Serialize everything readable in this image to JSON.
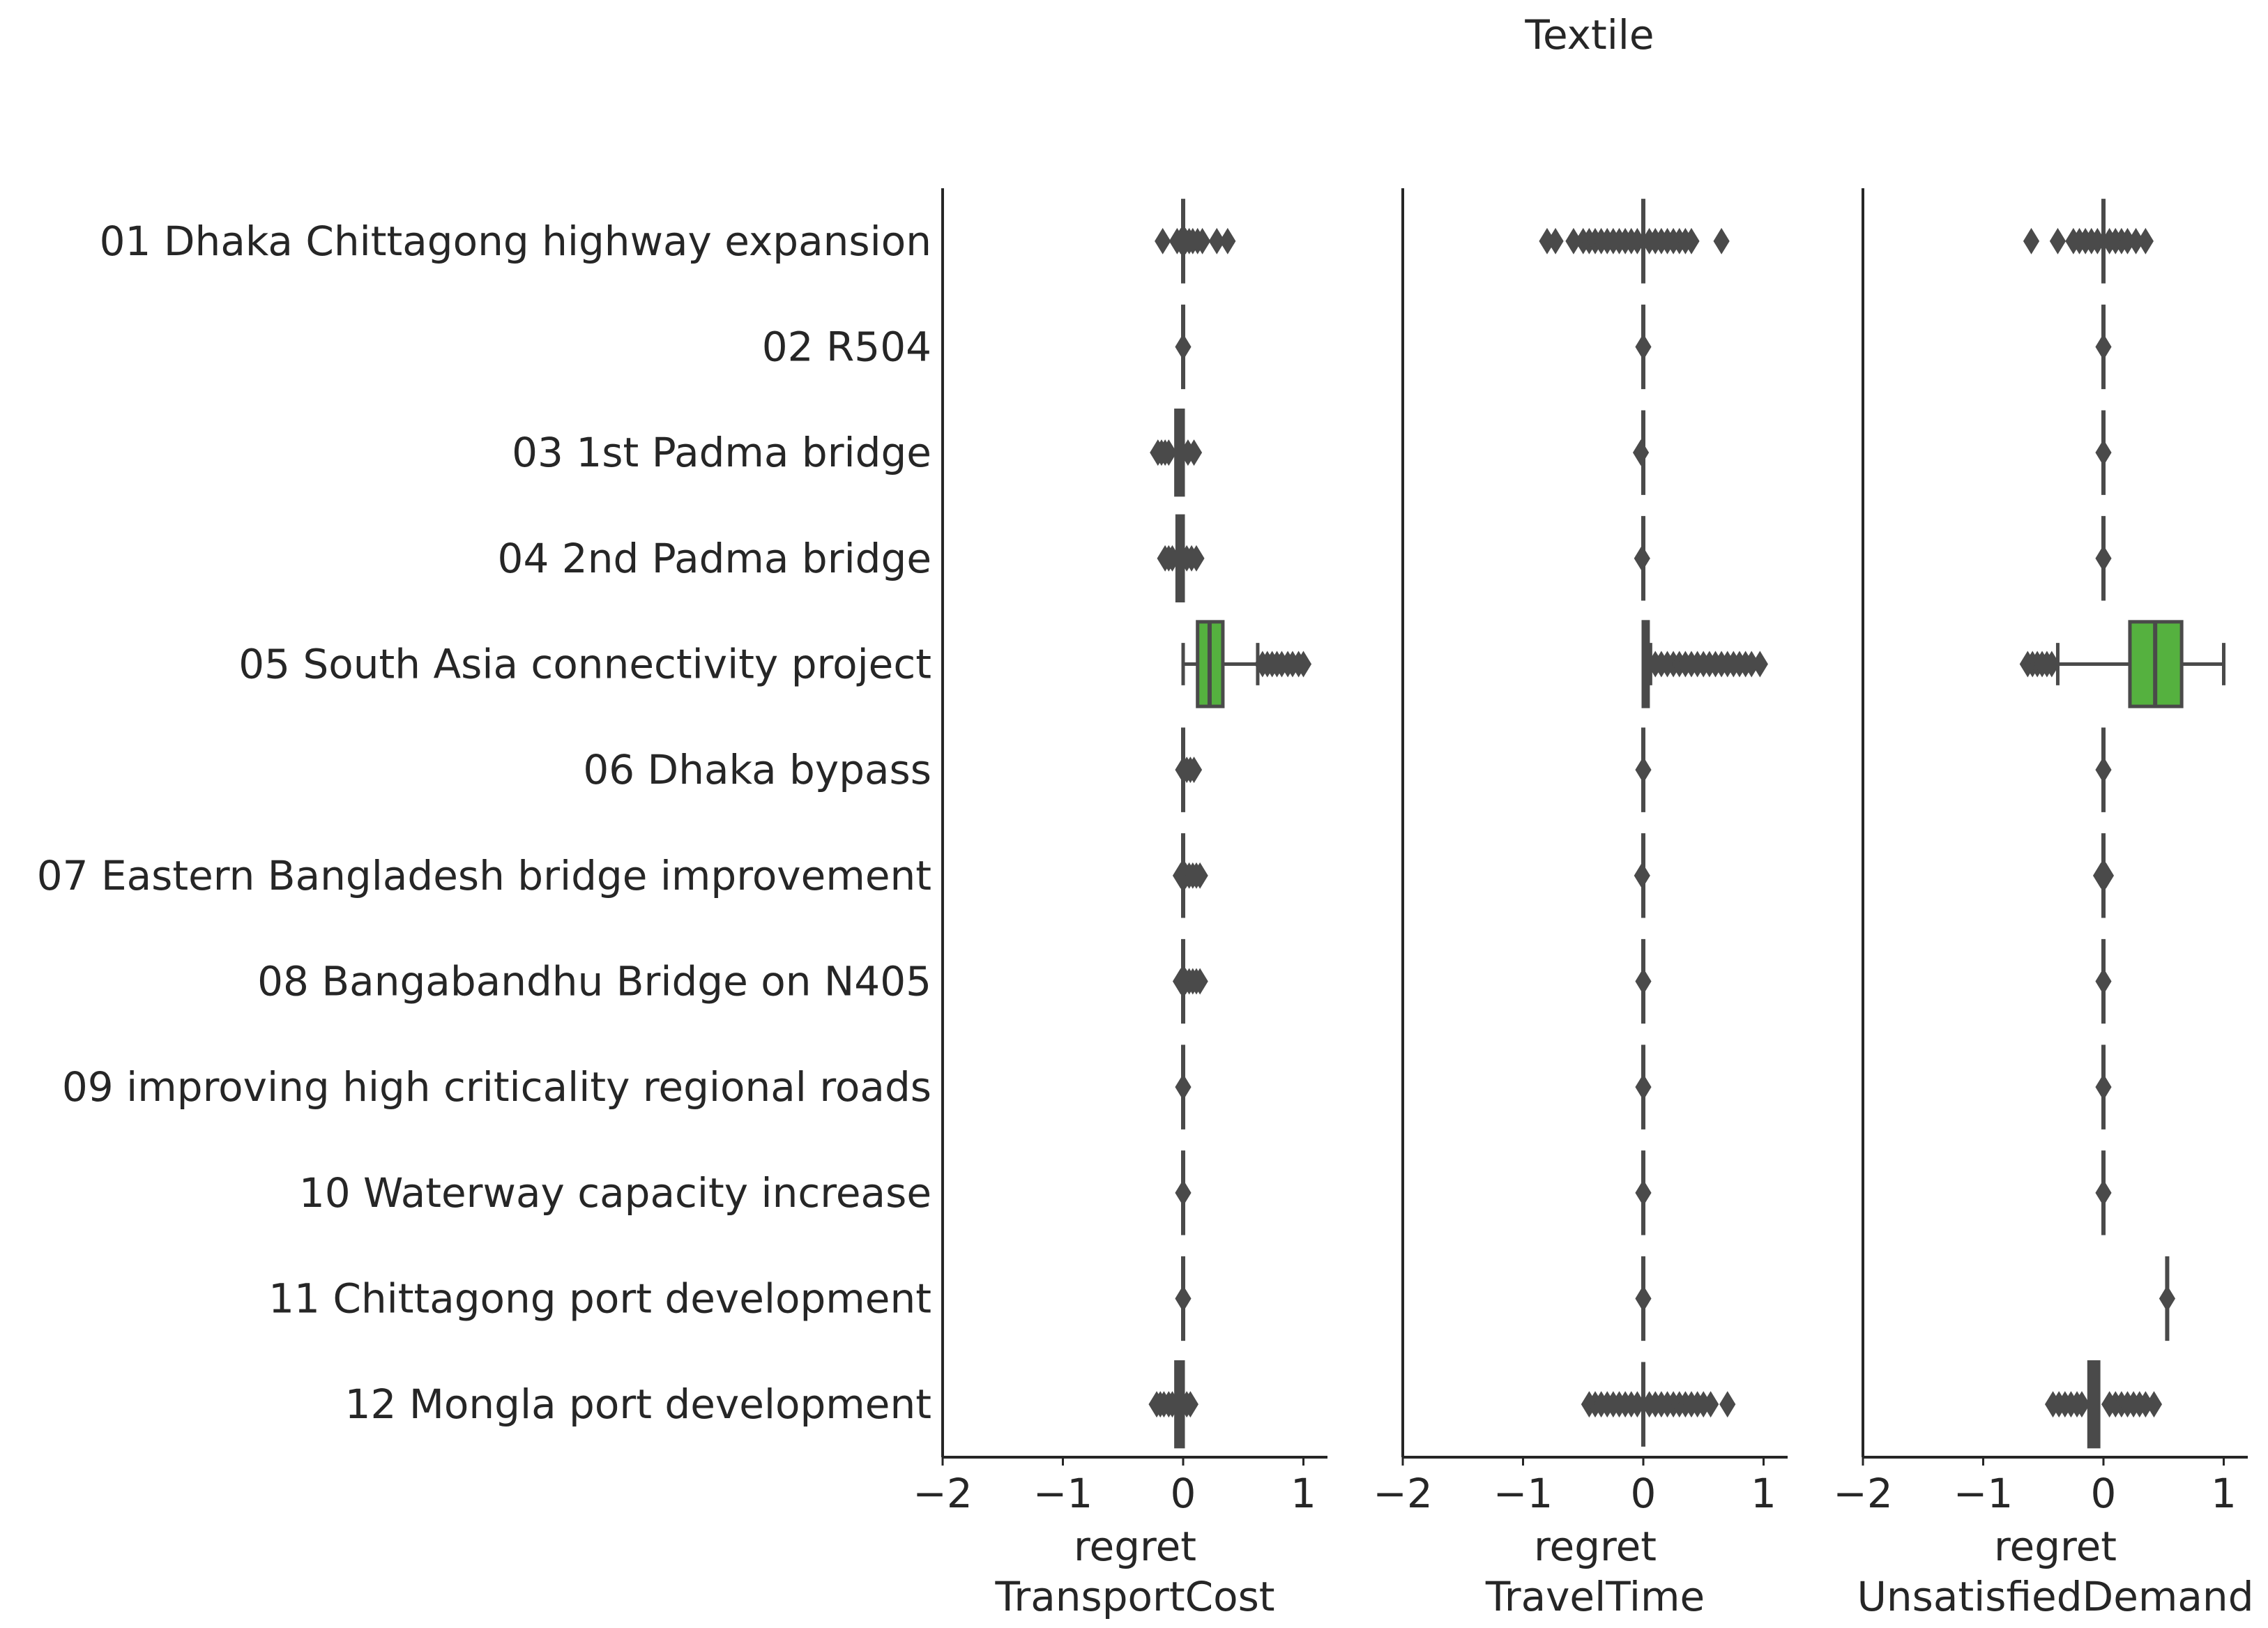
{
  "chart_data": {
    "type": "boxplot",
    "title": "Textile",
    "categories": [
      "01 Dhaka Chittagong highway expansion",
      "02 R504",
      "03 1st Padma bridge",
      "04 2nd Padma bridge",
      "05 South Asia connectivity project",
      "06 Dhaka bypass",
      "07 Eastern Bangladesh bridge improvement",
      "08 Bangabandhu Bridge on N405",
      "09 improving high criticality regional roads",
      "10 Waterway capacity increase",
      "11 Chittagong port development",
      "12 Mongla port development"
    ],
    "xlim": [
      -2,
      1.2
    ],
    "xticks": [
      -2,
      -1,
      0,
      1
    ],
    "xtick_labels": [
      "−2",
      "−1",
      "0",
      "1"
    ],
    "highlight_color": "#55b13f",
    "default_color": "#4a4a4a",
    "panels": [
      {
        "xlabel_line1": "regret",
        "xlabel_line2": "TransportCost",
        "boxes": [
          {
            "q1": 0.0,
            "median": 0.0,
            "q3": 0.0,
            "whislo": 0.0,
            "whishi": 0.0,
            "fliers": [
              -0.17,
              -0.05,
              -0.02,
              0.02,
              0.05,
              0.08,
              0.12,
              0.16,
              0.28,
              0.37
            ]
          },
          {
            "q1": 0.0,
            "median": 0.0,
            "q3": 0.0,
            "whislo": 0.0,
            "whishi": 0.0,
            "fliers": [
              0.0
            ]
          },
          {
            "q1": -0.06,
            "median": -0.03,
            "q3": 0.0,
            "whislo": -0.06,
            "whishi": 0.0,
            "fliers": [
              -0.21,
              -0.18,
              -0.15,
              -0.12,
              0.04,
              0.09
            ]
          },
          {
            "q1": -0.05,
            "median": -0.02,
            "q3": 0.0,
            "whislo": -0.05,
            "whishi": 0.0,
            "fliers": [
              -0.15,
              -0.12,
              -0.09,
              0.03,
              0.07,
              0.11
            ]
          },
          {
            "q1": 0.12,
            "median": 0.22,
            "q3": 0.33,
            "whislo": 0.0,
            "whishi": 0.62,
            "fliers": [
              0.66,
              0.7,
              0.74,
              0.78,
              0.82,
              0.87,
              0.91,
              0.96,
              1.0
            ],
            "highlight": true
          },
          {
            "q1": 0.0,
            "median": 0.0,
            "q3": 0.0,
            "whislo": 0.0,
            "whishi": 0.0,
            "fliers": [
              0.0,
              0.03,
              0.06,
              0.09
            ]
          },
          {
            "q1": 0.0,
            "median": 0.0,
            "q3": 0.0,
            "whislo": 0.0,
            "whishi": 0.0,
            "fliers": [
              -0.02,
              0.02,
              0.05,
              0.08,
              0.11,
              0.14
            ]
          },
          {
            "q1": 0.0,
            "median": 0.0,
            "q3": 0.0,
            "whislo": 0.0,
            "whishi": 0.0,
            "fliers": [
              -0.02,
              0.02,
              0.05,
              0.08,
              0.11,
              0.14
            ]
          },
          {
            "q1": 0.0,
            "median": 0.0,
            "q3": 0.0,
            "whislo": 0.0,
            "whishi": 0.0,
            "fliers": [
              0.0
            ]
          },
          {
            "q1": 0.0,
            "median": 0.0,
            "q3": 0.0,
            "whislo": 0.0,
            "whishi": 0.0,
            "fliers": [
              0.0
            ]
          },
          {
            "q1": 0.0,
            "median": 0.0,
            "q3": 0.0,
            "whislo": 0.0,
            "whishi": 0.0,
            "fliers": [
              0.0
            ]
          },
          {
            "q1": -0.06,
            "median": -0.03,
            "q3": 0.0,
            "whislo": -0.06,
            "whishi": 0.0,
            "fliers": [
              -0.22,
              -0.19,
              -0.16,
              -0.12,
              -0.09,
              0.03,
              0.06
            ]
          }
        ]
      },
      {
        "xlabel_line1": "regret",
        "xlabel_line2": "TravelTime",
        "boxes": [
          {
            "q1": 0.0,
            "median": 0.0,
            "q3": 0.0,
            "whislo": 0.0,
            "whishi": 0.0,
            "fliers": [
              -0.8,
              -0.73,
              -0.58,
              -0.5,
              -0.45,
              -0.4,
              -0.35,
              -0.3,
              -0.25,
              -0.2,
              -0.15,
              -0.1,
              -0.05,
              0.05,
              0.1,
              0.15,
              0.2,
              0.25,
              0.3,
              0.35,
              0.4,
              0.65
            ]
          },
          {
            "q1": 0.0,
            "median": 0.0,
            "q3": 0.0,
            "whislo": 0.0,
            "whishi": 0.0,
            "fliers": [
              0.0
            ]
          },
          {
            "q1": 0.0,
            "median": 0.0,
            "q3": 0.0,
            "whislo": 0.0,
            "whishi": 0.0,
            "fliers": [
              -0.02
            ]
          },
          {
            "q1": 0.0,
            "median": 0.0,
            "q3": 0.0,
            "whislo": 0.0,
            "whishi": 0.0,
            "fliers": [
              -0.01
            ]
          },
          {
            "q1": 0.0,
            "median": 0.02,
            "q3": 0.04,
            "whislo": 0.0,
            "whishi": 0.06,
            "fliers": [
              0.1,
              0.15,
              0.2,
              0.25,
              0.3,
              0.35,
              0.4,
              0.45,
              0.5,
              0.55,
              0.6,
              0.65,
              0.7,
              0.75,
              0.8,
              0.85,
              0.9,
              0.97
            ],
            "highlight": true
          },
          {
            "q1": 0.0,
            "median": 0.0,
            "q3": 0.0,
            "whislo": 0.0,
            "whishi": 0.0,
            "fliers": [
              0.0
            ]
          },
          {
            "q1": 0.0,
            "median": 0.0,
            "q3": 0.0,
            "whislo": 0.0,
            "whishi": 0.0,
            "fliers": [
              -0.01
            ]
          },
          {
            "q1": 0.0,
            "median": 0.0,
            "q3": 0.0,
            "whislo": 0.0,
            "whishi": 0.0,
            "fliers": [
              0.0
            ]
          },
          {
            "q1": 0.0,
            "median": 0.0,
            "q3": 0.0,
            "whislo": 0.0,
            "whishi": 0.0,
            "fliers": [
              0.0
            ]
          },
          {
            "q1": 0.0,
            "median": 0.0,
            "q3": 0.0,
            "whislo": 0.0,
            "whishi": 0.0,
            "fliers": [
              0.0
            ]
          },
          {
            "q1": 0.0,
            "median": 0.0,
            "q3": 0.0,
            "whislo": 0.0,
            "whishi": 0.0,
            "fliers": [
              0.0
            ]
          },
          {
            "q1": 0.0,
            "median": 0.0,
            "q3": 0.0,
            "whislo": 0.0,
            "whishi": 0.0,
            "fliers": [
              -0.45,
              -0.4,
              -0.35,
              -0.3,
              -0.25,
              -0.2,
              -0.15,
              -0.1,
              -0.05,
              0.05,
              0.1,
              0.15,
              0.2,
              0.25,
              0.3,
              0.35,
              0.4,
              0.45,
              0.5,
              0.56,
              0.7
            ]
          }
        ]
      },
      {
        "xlabel_line1": "regret",
        "xlabel_line2": "UnsatisfiedDemand",
        "boxes": [
          {
            "q1": 0.0,
            "median": 0.0,
            "q3": 0.0,
            "whislo": 0.0,
            "whishi": 0.0,
            "fliers": [
              -0.6,
              -0.38,
              -0.25,
              -0.2,
              -0.15,
              -0.1,
              -0.05,
              0.05,
              0.1,
              0.15,
              0.2,
              0.27,
              0.35
            ]
          },
          {
            "q1": 0.0,
            "median": 0.0,
            "q3": 0.0,
            "whislo": 0.0,
            "whishi": 0.0,
            "fliers": [
              0.0
            ]
          },
          {
            "q1": 0.0,
            "median": 0.0,
            "q3": 0.0,
            "whislo": 0.0,
            "whishi": 0.0,
            "fliers": [
              0.0
            ]
          },
          {
            "q1": 0.0,
            "median": 0.0,
            "q3": 0.0,
            "whislo": 0.0,
            "whishi": 0.0,
            "fliers": [
              0.0
            ]
          },
          {
            "q1": 0.22,
            "median": 0.43,
            "q3": 0.65,
            "whislo": -0.38,
            "whishi": 1.0,
            "fliers": [
              -0.63,
              -0.59,
              -0.55,
              -0.51,
              -0.47,
              -0.43
            ],
            "highlight": true
          },
          {
            "q1": 0.0,
            "median": 0.0,
            "q3": 0.0,
            "whislo": 0.0,
            "whishi": 0.0,
            "fliers": [
              0.0
            ]
          },
          {
            "q1": 0.0,
            "median": 0.0,
            "q3": 0.0,
            "whislo": 0.0,
            "whishi": 0.0,
            "fliers": [
              -0.02,
              0.0,
              0.02
            ]
          },
          {
            "q1": 0.0,
            "median": 0.0,
            "q3": 0.0,
            "whislo": 0.0,
            "whishi": 0.0,
            "fliers": [
              0.0
            ]
          },
          {
            "q1": 0.0,
            "median": 0.0,
            "q3": 0.0,
            "whislo": 0.0,
            "whishi": 0.0,
            "fliers": [
              0.0
            ]
          },
          {
            "q1": 0.0,
            "median": 0.0,
            "q3": 0.0,
            "whislo": 0.0,
            "whishi": 0.0,
            "fliers": [
              0.0
            ]
          },
          {
            "q1": 0.53,
            "median": 0.53,
            "q3": 0.53,
            "whislo": 0.53,
            "whishi": 0.53,
            "fliers": [
              0.53
            ]
          },
          {
            "q1": -0.12,
            "median": -0.08,
            "q3": -0.04,
            "whislo": -0.12,
            "whishi": -0.04,
            "fliers": [
              -0.42,
              -0.37,
              -0.32,
              -0.27,
              -0.22,
              -0.18,
              0.05,
              0.1,
              0.15,
              0.2,
              0.25,
              0.3,
              0.35,
              0.42
            ]
          }
        ]
      }
    ]
  }
}
